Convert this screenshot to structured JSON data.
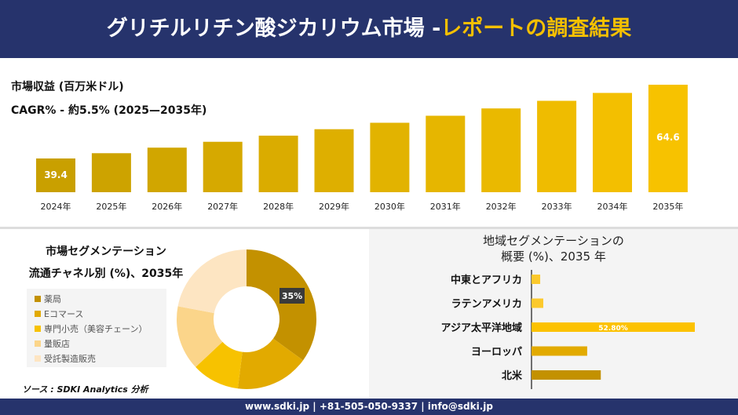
{
  "header": {
    "title_main": "グリチルリチン酸ジカリウム市場 -",
    "title_accent": "レポートの調査結果"
  },
  "revenue": {
    "label": "市場収益 (百万米ドル)",
    "cagr": "CAGR% - 約5.5% (2025—2035年)"
  },
  "chart_data": [
    {
      "type": "bar",
      "categories": [
        "2024年",
        "2025年",
        "2026年",
        "2027年",
        "2028年",
        "2029年",
        "2030年",
        "2031年",
        "2032年",
        "2033年",
        "2034年",
        "2035年"
      ],
      "values": [
        39.4,
        41.2,
        43.1,
        45.1,
        47.2,
        49.4,
        51.6,
        54.0,
        56.5,
        59.1,
        61.8,
        64.6
      ],
      "data_labels": {
        "0": "39.4",
        "11": "64.6"
      },
      "colors": {
        "start": "#c9a000",
        "end": "#f7c200"
      }
    },
    {
      "type": "pie",
      "title": "市場セグメンテーション 流通チャネル別 (%)、2035年",
      "title_line1": "市場セグメンテーション",
      "title_line2": "流通チャネル別 (%)、2035年",
      "labels": [
        "薬局",
        "Eコマース",
        "専門小売（美容チェーン）",
        "量販店",
        "受託製造販売"
      ],
      "values": [
        35,
        17,
        11,
        15,
        22
      ],
      "colors": [
        "#c39100",
        "#e2aa00",
        "#f7c200",
        "#fbd58a",
        "#fde5c2"
      ],
      "data_label": "35%"
    },
    {
      "type": "bar",
      "orientation": "horizontal",
      "title_line1": "地域セグメンテーションの",
      "title_line2": "概要 (%)、2035 年",
      "categories": [
        "中東とアフリカ",
        "ラテンアメリカ",
        "アジア太平洋地域",
        "ヨーロッパ",
        "北米"
      ],
      "values": [
        2.8,
        3.8,
        52.8,
        18.0,
        22.4
      ],
      "colors": [
        "#fcc92c",
        "#fcc92c",
        "#fcc200",
        "#e2aa00",
        "#c39100"
      ],
      "data_label": "52.80%"
    }
  ],
  "source": "ソース : SDKI Analytics 分析",
  "footer": "www.sdki.jp | +81-505-050-9337 | info@sdki.jp"
}
